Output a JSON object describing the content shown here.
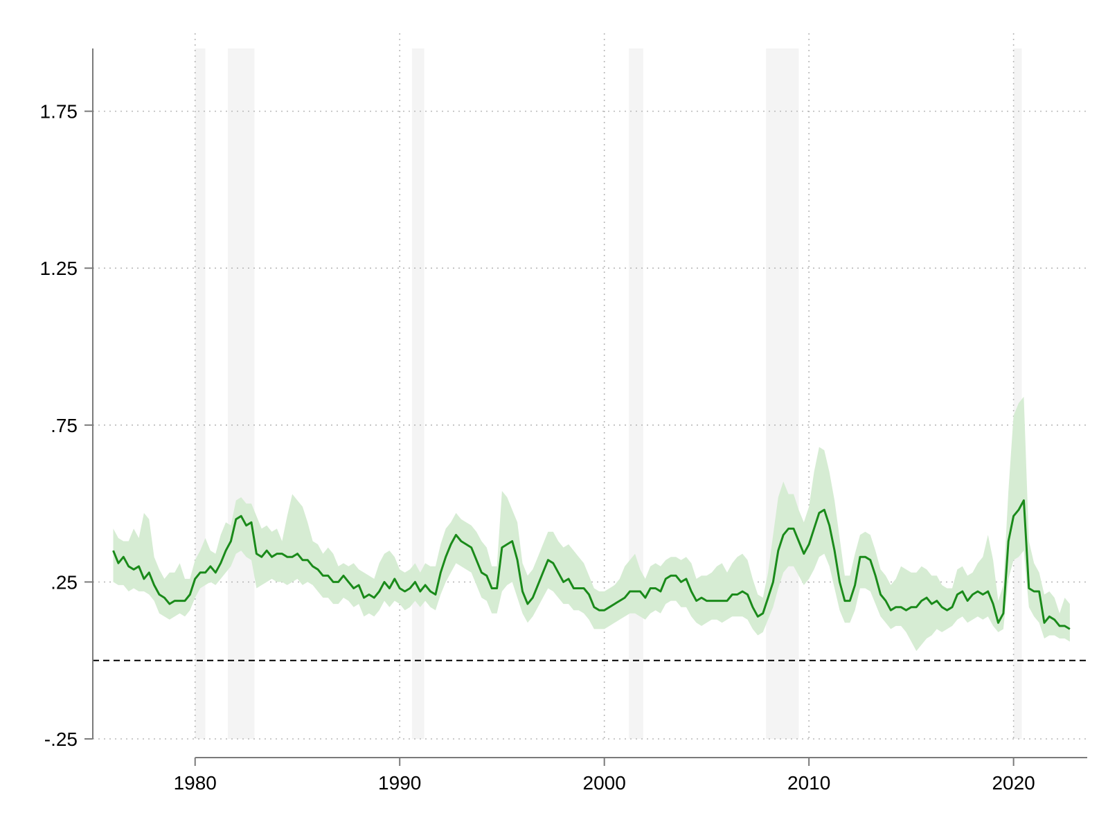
{
  "chart_data": {
    "type": "line",
    "title": "",
    "xlabel": "",
    "ylabel": "",
    "xlim": [
      1975.0,
      2023.6
    ],
    "ylim": [
      -0.25,
      1.95
    ],
    "yticks": [
      -0.25,
      0.25,
      0.75,
      1.25,
      1.75
    ],
    "ytick_labels": [
      "-.25",
      ".25",
      ".75",
      "1.25",
      "1.75"
    ],
    "xticks": [
      1980,
      1990,
      2000,
      2010,
      2020
    ],
    "xtick_labels": [
      "1980",
      "1990",
      "2000",
      "2010",
      "2020"
    ],
    "grid": true,
    "legend": "none",
    "reference_line": {
      "y": 0,
      "style": "dashed",
      "color": "#000000"
    },
    "shaded_periods": [
      [
        1980.0,
        1980.5
      ],
      [
        1981.6,
        1982.9
      ],
      [
        1990.6,
        1991.2
      ],
      [
        2001.2,
        2001.9
      ],
      [
        2007.9,
        2009.5
      ],
      [
        2020.0,
        2020.4
      ]
    ],
    "colors": {
      "line": "#1a8a1a",
      "band": "#d6ecd3",
      "shade": "#f4f4f4",
      "reference": "#000000"
    },
    "series": [
      {
        "x": [
          1976.0,
          1976.25,
          1976.5,
          1976.75,
          1977.0,
          1977.25,
          1977.5,
          1977.75,
          1978.0,
          1978.25,
          1978.5,
          1978.75,
          1979.0,
          1979.25,
          1979.5,
          1979.75,
          1980.0,
          1980.25,
          1980.5,
          1980.75,
          1981.0,
          1981.25,
          1981.5,
          1981.75,
          1982.0,
          1982.25,
          1982.5,
          1982.75,
          1983.0,
          1983.25,
          1983.5,
          1983.75,
          1984.0,
          1984.25,
          1984.5,
          1984.75,
          1985.0,
          1985.25,
          1985.5,
          1985.75,
          1986.0,
          1986.25,
          1986.5,
          1986.75,
          1987.0,
          1987.25,
          1987.5,
          1987.75,
          1988.0,
          1988.25,
          1988.5,
          1988.75,
          1989.0,
          1989.25,
          1989.5,
          1989.75,
          1990.0,
          1990.25,
          1990.5,
          1990.75,
          1991.0,
          1991.25,
          1991.5,
          1991.75,
          1992.0,
          1992.25,
          1992.5,
          1992.75,
          1993.0,
          1993.25,
          1993.5,
          1993.75,
          1994.0,
          1994.25,
          1994.5,
          1994.75,
          1995.0,
          1995.25,
          1995.5,
          1995.75,
          1996.0,
          1996.25,
          1996.5,
          1996.75,
          1997.0,
          1997.25,
          1997.5,
          1997.75,
          1998.0,
          1998.25,
          1998.5,
          1998.75,
          1999.0,
          1999.25,
          1999.5,
          1999.75,
          2000.0,
          2000.25,
          2000.5,
          2000.75,
          2001.0,
          2001.25,
          2001.5,
          2001.75,
          2002.0,
          2002.25,
          2002.5,
          2002.75,
          2003.0,
          2003.25,
          2003.5,
          2003.75,
          2004.0,
          2004.25,
          2004.5,
          2004.75,
          2005.0,
          2005.25,
          2005.5,
          2005.75,
          2006.0,
          2006.25,
          2006.5,
          2006.75,
          2007.0,
          2007.25,
          2007.5,
          2007.75,
          2008.0,
          2008.25,
          2008.5,
          2008.75,
          2009.0,
          2009.25,
          2009.5,
          2009.75,
          2010.0,
          2010.25,
          2010.5,
          2010.75,
          2011.0,
          2011.25,
          2011.5,
          2011.75,
          2012.0,
          2012.25,
          2012.5,
          2012.75,
          2013.0,
          2013.25,
          2013.5,
          2013.75,
          2014.0,
          2014.25,
          2014.5,
          2014.75,
          2015.0,
          2015.25,
          2015.5,
          2015.75,
          2016.0,
          2016.25,
          2016.5,
          2016.75,
          2017.0,
          2017.25,
          2017.5,
          2017.75,
          2018.0,
          2018.25,
          2018.5,
          2018.75,
          2019.0,
          2019.25,
          2019.5,
          2019.75,
          2020.0,
          2020.25,
          2020.5,
          2020.75,
          2021.0,
          2021.25,
          2021.5,
          2021.75,
          2022.0,
          2022.25,
          2022.5,
          2022.75
        ],
        "y": [
          0.35,
          0.31,
          0.33,
          0.3,
          0.29,
          0.3,
          0.26,
          0.28,
          0.24,
          0.21,
          0.2,
          0.18,
          0.19,
          0.19,
          0.19,
          0.21,
          0.26,
          0.28,
          0.28,
          0.3,
          0.28,
          0.31,
          0.35,
          0.38,
          0.45,
          0.46,
          0.43,
          0.44,
          0.34,
          0.33,
          0.35,
          0.33,
          0.34,
          0.34,
          0.33,
          0.33,
          0.34,
          0.32,
          0.32,
          0.3,
          0.29,
          0.27,
          0.27,
          0.25,
          0.25,
          0.27,
          0.25,
          0.23,
          0.24,
          0.2,
          0.21,
          0.2,
          0.22,
          0.25,
          0.23,
          0.26,
          0.23,
          0.22,
          0.23,
          0.25,
          0.22,
          0.24,
          0.22,
          0.21,
          0.28,
          0.33,
          0.37,
          0.4,
          0.38,
          0.37,
          0.36,
          0.32,
          0.28,
          0.27,
          0.23,
          0.23,
          0.36,
          0.37,
          0.38,
          0.32,
          0.22,
          0.18,
          0.2,
          0.24,
          0.28,
          0.32,
          0.31,
          0.28,
          0.25,
          0.26,
          0.23,
          0.23,
          0.23,
          0.21,
          0.17,
          0.16,
          0.16,
          0.17,
          0.18,
          0.19,
          0.2,
          0.22,
          0.22,
          0.22,
          0.2,
          0.23,
          0.23,
          0.22,
          0.26,
          0.27,
          0.27,
          0.25,
          0.26,
          0.22,
          0.19,
          0.2,
          0.19,
          0.19,
          0.19,
          0.19,
          0.19,
          0.21,
          0.21,
          0.22,
          0.21,
          0.17,
          0.14,
          0.15,
          0.2,
          0.25,
          0.35,
          0.4,
          0.42,
          0.42,
          0.38,
          0.34,
          0.37,
          0.42,
          0.47,
          0.48,
          0.43,
          0.35,
          0.25,
          0.19,
          0.19,
          0.24,
          0.33,
          0.33,
          0.32,
          0.27,
          0.21,
          0.19,
          0.16,
          0.17,
          0.17,
          0.16,
          0.17,
          0.17,
          0.19,
          0.2,
          0.18,
          0.19,
          0.17,
          0.16,
          0.17,
          0.21,
          0.22,
          0.19,
          0.21,
          0.22,
          0.21,
          0.22,
          0.18,
          0.12,
          0.15,
          0.38,
          0.46,
          0.48,
          0.51,
          0.23,
          0.22,
          0.22,
          0.12,
          0.14,
          0.13,
          0.11,
          0.11,
          0.1
        ],
        "lower": [
          0.25,
          0.24,
          0.24,
          0.22,
          0.23,
          0.22,
          0.22,
          0.21,
          0.19,
          0.15,
          0.14,
          0.13,
          0.14,
          0.15,
          0.14,
          0.16,
          0.2,
          0.23,
          0.24,
          0.25,
          0.24,
          0.26,
          0.28,
          0.3,
          0.34,
          0.35,
          0.33,
          0.32,
          0.23,
          0.24,
          0.25,
          0.26,
          0.25,
          0.25,
          0.24,
          0.25,
          0.26,
          0.24,
          0.25,
          0.24,
          0.22,
          0.2,
          0.2,
          0.18,
          0.18,
          0.2,
          0.19,
          0.17,
          0.18,
          0.14,
          0.15,
          0.14,
          0.16,
          0.19,
          0.17,
          0.19,
          0.18,
          0.16,
          0.17,
          0.19,
          0.17,
          0.19,
          0.17,
          0.16,
          0.21,
          0.25,
          0.28,
          0.31,
          0.3,
          0.29,
          0.28,
          0.24,
          0.2,
          0.19,
          0.15,
          0.15,
          0.22,
          0.24,
          0.25,
          0.2,
          0.15,
          0.12,
          0.14,
          0.17,
          0.2,
          0.23,
          0.22,
          0.2,
          0.18,
          0.18,
          0.16,
          0.16,
          0.15,
          0.13,
          0.1,
          0.1,
          0.1,
          0.11,
          0.12,
          0.13,
          0.14,
          0.15,
          0.15,
          0.14,
          0.13,
          0.15,
          0.16,
          0.15,
          0.18,
          0.19,
          0.19,
          0.17,
          0.17,
          0.14,
          0.12,
          0.11,
          0.12,
          0.13,
          0.13,
          0.12,
          0.13,
          0.14,
          0.14,
          0.14,
          0.13,
          0.1,
          0.08,
          0.09,
          0.13,
          0.17,
          0.23,
          0.28,
          0.3,
          0.3,
          0.27,
          0.24,
          0.26,
          0.29,
          0.33,
          0.34,
          0.3,
          0.23,
          0.16,
          0.12,
          0.12,
          0.16,
          0.23,
          0.23,
          0.22,
          0.18,
          0.14,
          0.12,
          0.1,
          0.11,
          0.11,
          0.09,
          0.06,
          0.03,
          0.05,
          0.07,
          0.08,
          0.1,
          0.09,
          0.1,
          0.11,
          0.13,
          0.14,
          0.12,
          0.13,
          0.14,
          0.13,
          0.14,
          0.11,
          0.09,
          0.1,
          0.26,
          0.32,
          0.33,
          0.35,
          0.17,
          0.14,
          0.12,
          0.07,
          0.08,
          0.08,
          0.07,
          0.07,
          0.06
        ],
        "upper": [
          0.42,
          0.39,
          0.38,
          0.38,
          0.42,
          0.39,
          0.47,
          0.45,
          0.33,
          0.29,
          0.26,
          0.28,
          0.28,
          0.31,
          0.26,
          0.26,
          0.32,
          0.35,
          0.39,
          0.35,
          0.34,
          0.4,
          0.44,
          0.43,
          0.51,
          0.52,
          0.5,
          0.5,
          0.46,
          0.42,
          0.43,
          0.41,
          0.42,
          0.38,
          0.46,
          0.53,
          0.51,
          0.49,
          0.44,
          0.38,
          0.37,
          0.34,
          0.36,
          0.34,
          0.3,
          0.31,
          0.3,
          0.31,
          0.29,
          0.28,
          0.27,
          0.26,
          0.31,
          0.34,
          0.35,
          0.33,
          0.29,
          0.28,
          0.29,
          0.31,
          0.28,
          0.31,
          0.3,
          0.3,
          0.37,
          0.42,
          0.44,
          0.47,
          0.45,
          0.44,
          0.43,
          0.41,
          0.38,
          0.36,
          0.3,
          0.3,
          0.54,
          0.52,
          0.48,
          0.44,
          0.31,
          0.27,
          0.29,
          0.33,
          0.37,
          0.41,
          0.41,
          0.38,
          0.36,
          0.37,
          0.35,
          0.33,
          0.31,
          0.27,
          0.23,
          0.22,
          0.22,
          0.23,
          0.24,
          0.26,
          0.3,
          0.32,
          0.34,
          0.29,
          0.26,
          0.3,
          0.31,
          0.3,
          0.32,
          0.33,
          0.33,
          0.32,
          0.33,
          0.31,
          0.26,
          0.27,
          0.27,
          0.28,
          0.3,
          0.31,
          0.28,
          0.31,
          0.33,
          0.34,
          0.32,
          0.26,
          0.21,
          0.2,
          0.28,
          0.4,
          0.52,
          0.57,
          0.53,
          0.53,
          0.48,
          0.44,
          0.49,
          0.6,
          0.68,
          0.67,
          0.6,
          0.51,
          0.39,
          0.27,
          0.27,
          0.34,
          0.4,
          0.41,
          0.4,
          0.35,
          0.29,
          0.27,
          0.24,
          0.26,
          0.3,
          0.29,
          0.28,
          0.28,
          0.3,
          0.29,
          0.27,
          0.27,
          0.24,
          0.23,
          0.23,
          0.29,
          0.3,
          0.27,
          0.28,
          0.31,
          0.33,
          0.4,
          0.32,
          0.19,
          0.24,
          0.54,
          0.78,
          0.82,
          0.84,
          0.38,
          0.31,
          0.28,
          0.21,
          0.22,
          0.2,
          0.15,
          0.2,
          0.18
        ]
      }
    ]
  }
}
